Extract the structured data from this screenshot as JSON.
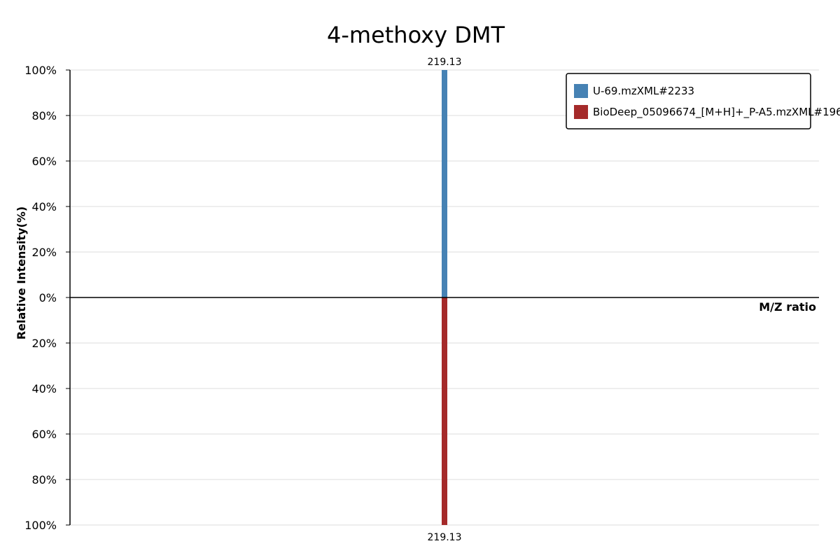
{
  "chart_data": {
    "type": "bar",
    "title": "4-methoxy DMT",
    "xlabel": "M/Z ratio",
    "ylabel": "Relative Intensity(%)",
    "ylim": [
      -100,
      100
    ],
    "y_ticks": [
      100,
      80,
      60,
      40,
      20,
      0,
      -20,
      -40,
      -60,
      -80,
      -100
    ],
    "y_tick_labels": [
      "100%",
      "80%",
      "60%",
      "40%",
      "20%",
      "0%",
      "20%",
      "40%",
      "60%",
      "80%",
      "100%"
    ],
    "xlim": [
      0,
      438.26
    ],
    "grid": true,
    "legend_position": "top-right",
    "series": [
      {
        "name": "U-69.mzXML#2233",
        "color": "#4682b4",
        "direction": "up",
        "peaks": [
          {
            "mz": 219.13,
            "intensity": 100,
            "label": "219.13"
          }
        ]
      },
      {
        "name": "BioDeep_05096674_[M+H]+_P-A5.mzXML#196",
        "color": "#a52a2a",
        "direction": "down",
        "peaks": [
          {
            "mz": 219.13,
            "intensity": 100,
            "label": "219.13"
          }
        ]
      }
    ]
  }
}
